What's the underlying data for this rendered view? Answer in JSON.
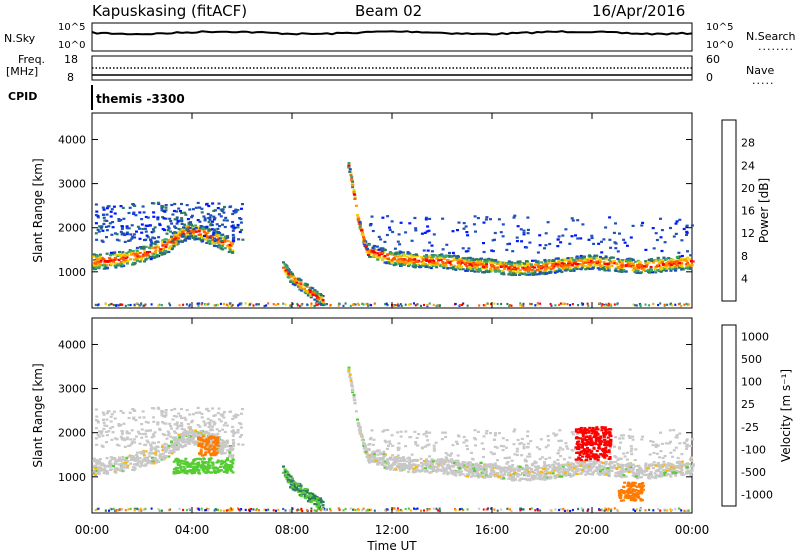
{
  "header": {
    "site": "Kapuskasing (fitACF)",
    "beam": "Beam 02",
    "date": "16/Apr/2016"
  },
  "noise_panel": {
    "left_label": "N.Sky",
    "right_label": "N.Search",
    "left_ticks": [
      "10^5",
      "10^0"
    ],
    "right_ticks": [
      "10^5",
      "10^0"
    ]
  },
  "freq_panel": {
    "left_label_line1": "Freq.",
    "left_label_line2": "[MHz]",
    "right_label": "Nave",
    "left_ticks": [
      "18",
      "8"
    ],
    "right_ticks": [
      "60",
      "0"
    ]
  },
  "cpid": {
    "label": "CPID",
    "value": "themis -3300"
  },
  "colors": {
    "panel_border": "#000000",
    "gray_scatter": "#c8c8c8"
  },
  "chart_data": [
    {
      "type": "heatmap",
      "title": "",
      "xlabel": "Time UT",
      "ylabel": "Slant Range [km]",
      "x_ticks": [
        "00:00",
        "04:00",
        "08:00",
        "12:00",
        "16:00",
        "20:00",
        "00:00"
      ],
      "y_ticks": [
        1000,
        2000,
        3000,
        4000
      ],
      "xlim_hours": [
        0,
        24
      ],
      "ylim_km": [
        180,
        4600
      ],
      "colorbar": {
        "label": "Power [dB]",
        "ticks": [
          4,
          8,
          12,
          16,
          20,
          24,
          28
        ],
        "range": [
          0,
          30
        ],
        "colors": [
          "#0018ff",
          "#1f4fb8",
          "#2e7a5e",
          "#3aa86a",
          "#f0d000",
          "#ff9a00",
          "#ff5a00",
          "#ff0000"
        ]
      },
      "bands": [
        {
          "name": "main",
          "points": [
            [
              0,
              1250
            ],
            [
              1,
              1300
            ],
            [
              2,
              1420
            ],
            [
              3,
              1650
            ],
            [
              3.8,
              1980
            ],
            [
              4.6,
              1850
            ],
            [
              5.6,
              1600
            ]
          ],
          "width_km": 180
        },
        {
          "name": "main-late",
          "points": [
            [
              11.0,
              1500
            ],
            [
              12,
              1320
            ],
            [
              13,
              1280
            ],
            [
              14,
              1260
            ],
            [
              15,
              1200
            ],
            [
              16,
              1150
            ],
            [
              17,
              1100
            ],
            [
              18,
              1130
            ],
            [
              19,
              1200
            ],
            [
              20,
              1250
            ],
            [
              21,
              1180
            ],
            [
              22,
              1150
            ],
            [
              23,
              1200
            ],
            [
              24,
              1250
            ]
          ],
          "width_km": 160
        },
        {
          "name": "arc",
          "points": [
            [
              7.6,
              1150
            ],
            [
              7.9,
              900
            ],
            [
              8.3,
              720
            ],
            [
              8.7,
              560
            ],
            [
              9.0,
              440
            ],
            [
              9.2,
              360
            ]
          ],
          "width_km": 120
        },
        {
          "name": "spike",
          "points": [
            [
              10.2,
              3500
            ],
            [
              10.4,
              2900
            ],
            [
              10.6,
              2200
            ],
            [
              10.8,
              1800
            ],
            [
              11.0,
              1400
            ]
          ],
          "width_km": 80
        }
      ]
    },
    {
      "type": "heatmap",
      "title": "",
      "xlabel": "Time UT",
      "ylabel": "Slant Range [km]",
      "x_ticks": [
        "00:00",
        "04:00",
        "08:00",
        "12:00",
        "16:00",
        "20:00",
        "00:00"
      ],
      "y_ticks": [
        1000,
        2000,
        3000,
        4000
      ],
      "xlim_hours": [
        0,
        24
      ],
      "ylim_km": [
        180,
        4600
      ],
      "colorbar": {
        "label": "Velocity [m s⁻¹]",
        "ticks": [
          "1000",
          "500",
          "100",
          "25",
          "-25",
          "-100",
          "-500",
          "-1000"
        ],
        "colors": [
          "#0018ff",
          "#2f5fa0",
          "#2e7a5e",
          "#55cc33",
          "#c8c8c8",
          "#ffb400",
          "#ff7a00",
          "#ff0000"
        ]
      },
      "regions": [
        {
          "name": "orange-blob",
          "t0": 4.2,
          "t1": 5.0,
          "r0": 1500,
          "r1": 1950,
          "color_index": 6
        },
        {
          "name": "green-blob",
          "t0": 3.2,
          "t1": 5.6,
          "r0": 1100,
          "r1": 1450,
          "color_index": 3
        },
        {
          "name": "red-late",
          "t0": 19.3,
          "t1": 20.7,
          "r0": 1400,
          "r1": 2150,
          "color_index": 7
        },
        {
          "name": "orange-late",
          "t0": 21.0,
          "t1": 22.0,
          "r0": 480,
          "r1": 900,
          "color_index": 6
        }
      ]
    }
  ]
}
